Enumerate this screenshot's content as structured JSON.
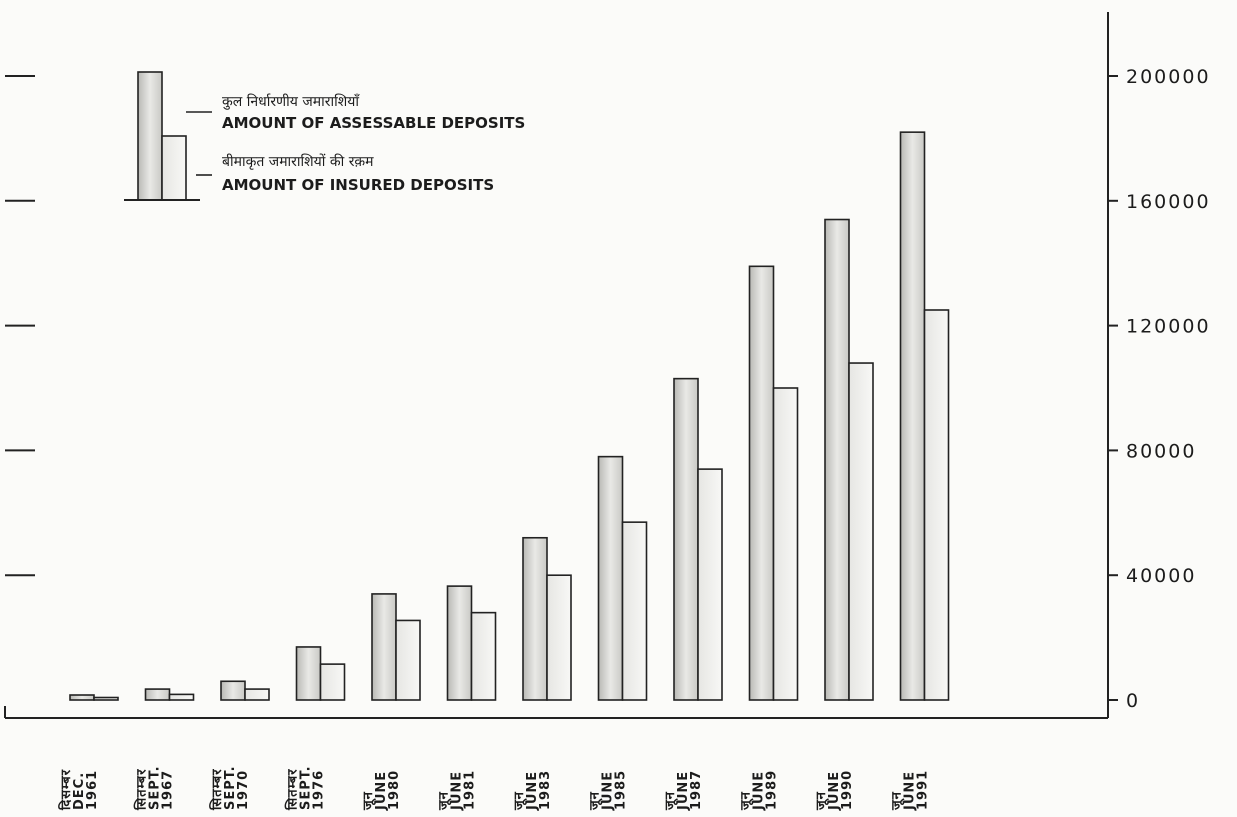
{
  "chart_data": {
    "type": "bar",
    "categories": [
      {
        "hi": "दिसम्बर",
        "en": "DEC.",
        "year": "1961"
      },
      {
        "hi": "सितम्बर",
        "en": "SEPT.",
        "year": "1967"
      },
      {
        "hi": "सितम्बर",
        "en": "SEPT.",
        "year": "1970"
      },
      {
        "hi": "सितम्बर",
        "en": "SEPT.",
        "year": "1976"
      },
      {
        "hi": "जून",
        "en": "JUNE",
        "year": "1980"
      },
      {
        "hi": "जून",
        "en": "JUNE",
        "year": "1981"
      },
      {
        "hi": "जून",
        "en": "JUNE",
        "year": "1983"
      },
      {
        "hi": "जून",
        "en": "JUNE",
        "year": "1985"
      },
      {
        "hi": "जून",
        "en": "JUNE",
        "year": "1987"
      },
      {
        "hi": "जून",
        "en": "JUNE",
        "year": "1989"
      },
      {
        "hi": "जून",
        "en": "JUNE",
        "year": "1990"
      },
      {
        "hi": "जून",
        "en": "JUNE",
        "year": "1991"
      }
    ],
    "series": [
      {
        "name_hi": "कुल निर्धारणीय जमाराशियाँ",
        "name": "AMOUNT OF ASSESSABLE DEPOSITS",
        "values": [
          1600,
          3500,
          6000,
          17000,
          34000,
          36500,
          52000,
          78000,
          103000,
          139000,
          154000,
          182000
        ],
        "color": "#d6d6d2"
      },
      {
        "name_hi": "बीमाकृत जमाराशियों की रक़म",
        "name": "AMOUNT OF INSURED DEPOSITS",
        "values": [
          800,
          1800,
          3500,
          11500,
          25500,
          28000,
          40000,
          57000,
          74000,
          100000,
          108000,
          125000
        ],
        "color": "#f3f3f1"
      }
    ],
    "y_ticks": [
      "0",
      "40000",
      "80000",
      "120000",
      "160000",
      "200000"
    ],
    "ylim": [
      0,
      220000
    ],
    "axis_side": "right",
    "legend_position": "top-left",
    "grid": false
  }
}
